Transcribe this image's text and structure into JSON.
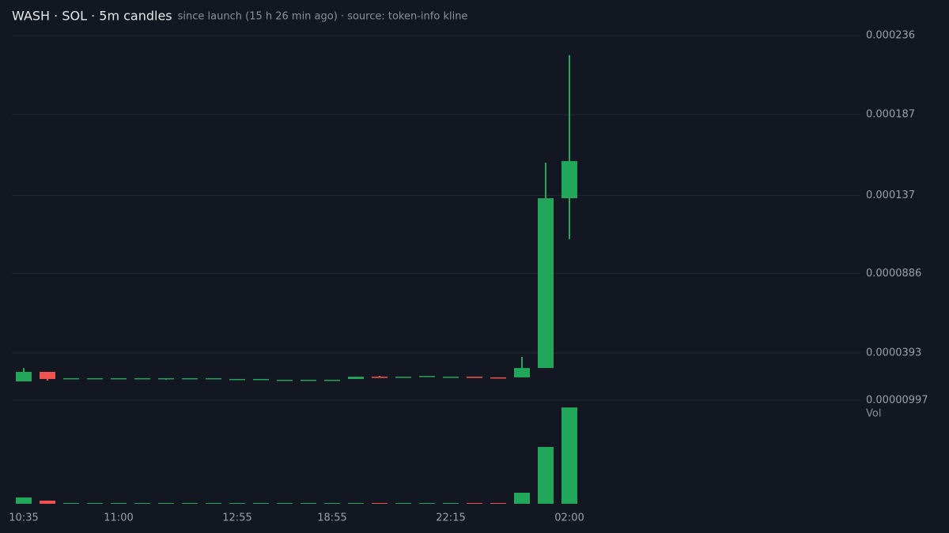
{
  "chart_data": {
    "type": "candlestick",
    "title": "WASH · SOL · 5m candles",
    "subtitle": "since launch (15 h 26 min ago) · source: token-info kline",
    "categories": [
      "10:35",
      null,
      null,
      null,
      "11:00",
      null,
      null,
      null,
      null,
      "12:55",
      null,
      null,
      null,
      "18:55",
      null,
      null,
      null,
      null,
      "22:15",
      null,
      null,
      null,
      null,
      "02:00"
    ],
    "open": [
      2.17e-05,
      2.76e-05,
      2.37e-05,
      2.37e-05,
      2.37e-05,
      2.37e-05,
      2.37e-05,
      2.37e-05,
      2.37e-05,
      2.32e-05,
      2.32e-05,
      2.27e-05,
      2.27e-05,
      2.27e-05,
      2.32e-05,
      2.46e-05,
      2.42e-05,
      2.46e-05,
      2.46e-05,
      2.46e-05,
      2.42e-05,
      2.42e-05,
      3e-05,
      0.0001352
    ],
    "high": [
      3e-05,
      2.76e-05,
      2.37e-05,
      2.37e-05,
      2.37e-05,
      2.37e-05,
      2.37e-05,
      2.37e-05,
      2.37e-05,
      2.32e-05,
      2.32e-05,
      2.27e-05,
      2.27e-05,
      2.27e-05,
      2.46e-05,
      2.51e-05,
      2.46e-05,
      2.51e-05,
      2.46e-05,
      2.46e-05,
      2.42e-05,
      3.69e-05,
      0.0001572,
      0.0002238
    ],
    "low": [
      2.17e-05,
      2.22e-05,
      2.37e-05,
      2.37e-05,
      2.37e-05,
      2.37e-05,
      2.27e-05,
      2.37e-05,
      2.37e-05,
      2.32e-05,
      2.32e-05,
      2.27e-05,
      2.27e-05,
      2.27e-05,
      2.32e-05,
      2.42e-05,
      2.42e-05,
      2.46e-05,
      2.46e-05,
      2.42e-05,
      2.37e-05,
      2.42e-05,
      3e-05,
      0.0001098
    ],
    "close": [
      2.76e-05,
      2.32e-05,
      2.37e-05,
      2.37e-05,
      2.37e-05,
      2.37e-05,
      2.37e-05,
      2.37e-05,
      2.37e-05,
      2.32e-05,
      2.32e-05,
      2.27e-05,
      2.27e-05,
      2.27e-05,
      2.46e-05,
      2.42e-05,
      2.46e-05,
      2.51e-05,
      2.46e-05,
      2.42e-05,
      2.37e-05,
      3e-05,
      0.0001352,
      0.0001582
    ],
    "up_color": "#22a65a",
    "down_color": "#ef5350",
    "ylim": [
      9.97e-06,
      0.000236
    ],
    "yticks": [
      9.97e-06,
      3.93e-05,
      8.86e-05,
      0.000137,
      0.000187,
      0.000236
    ],
    "grid": true,
    "volume": {
      "label": "Vol",
      "values": [
        8,
        4,
        1,
        1,
        1,
        1,
        1,
        1,
        1,
        1,
        1,
        1,
        1,
        1,
        1,
        1,
        1,
        1,
        1,
        1,
        1,
        14,
        72,
        122
      ]
    }
  }
}
